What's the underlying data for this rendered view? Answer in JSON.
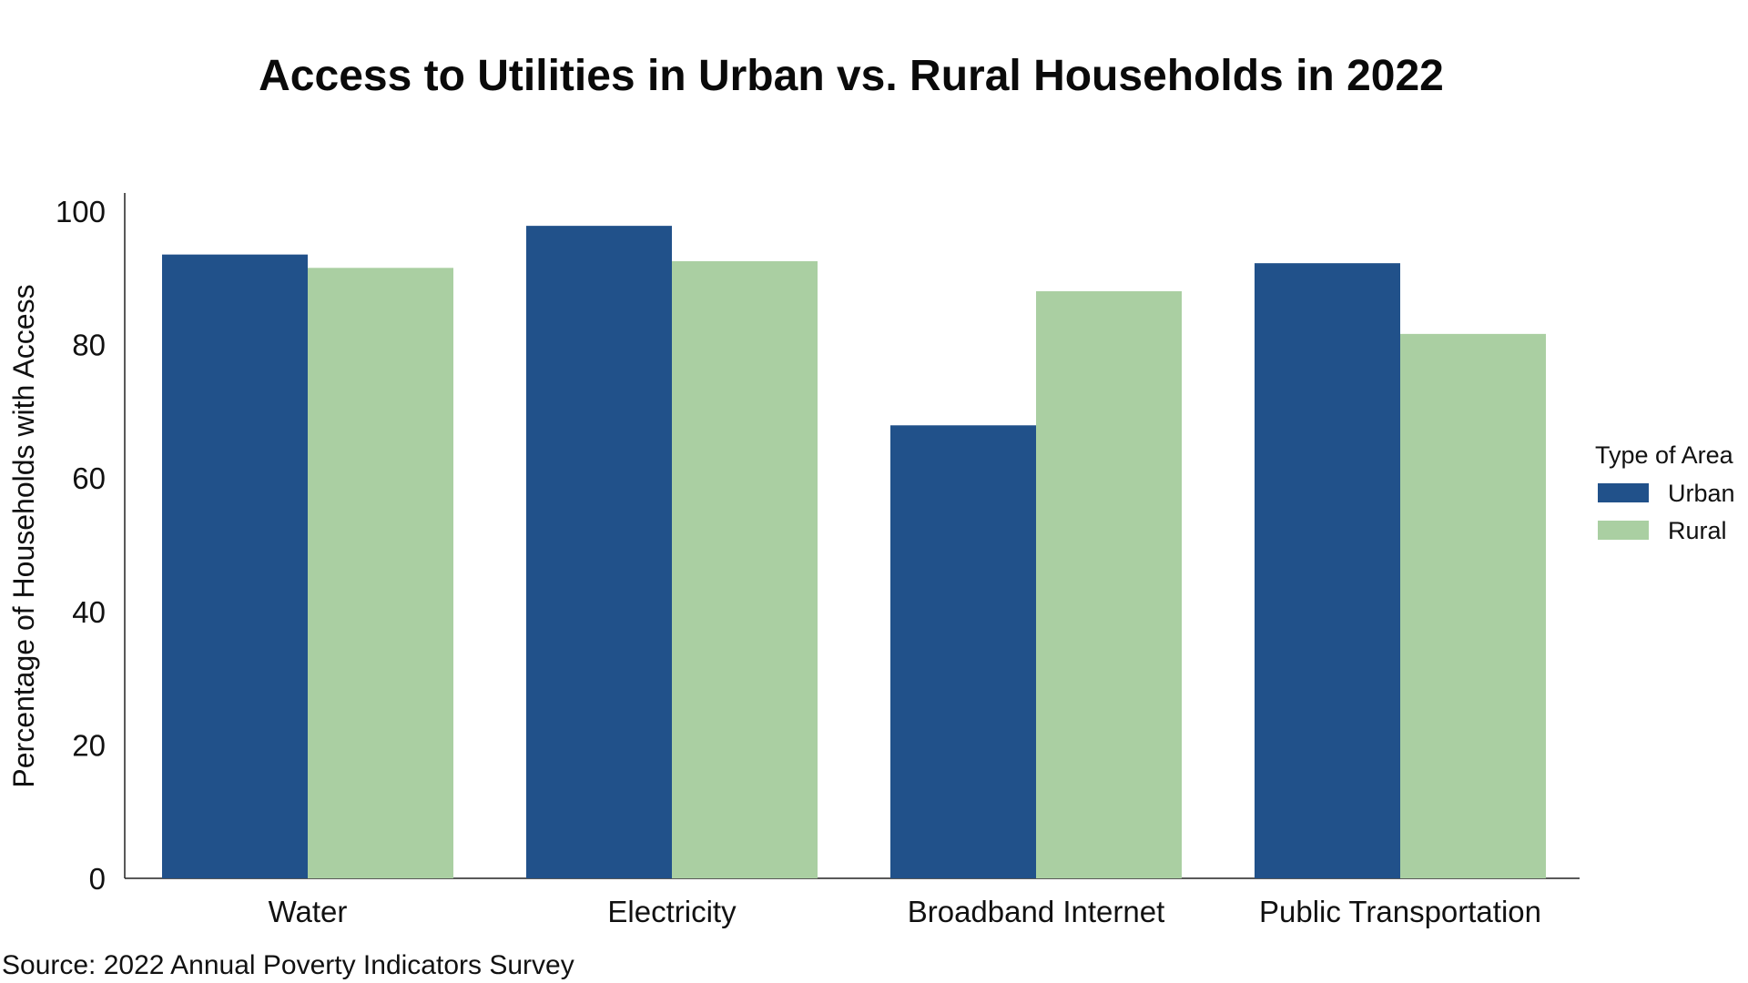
{
  "chart_data": {
    "type": "bar",
    "title": "Access to Utilities in Urban vs. Rural Households in 2022",
    "xlabel": "",
    "ylabel": "Percentage of Households with Access",
    "categories": [
      "Water",
      "Electricity",
      "Broadband Internet",
      "Public Transportation"
    ],
    "series": [
      {
        "name": "Urban",
        "values": [
          93.5,
          97.8,
          67.9,
          92.2
        ],
        "color": "#21518a"
      },
      {
        "name": "Rural",
        "values": [
          91.5,
          92.5,
          88.0,
          81.6
        ],
        "color": "#aacfa2"
      }
    ],
    "ylim": [
      0,
      100
    ],
    "yticks": [
      0,
      20,
      40,
      60,
      80,
      100
    ],
    "legend": {
      "title": "Type of Area",
      "position": "right"
    },
    "grid": false
  },
  "source": "Source: 2022 Annual Poverty Indicators Survey"
}
